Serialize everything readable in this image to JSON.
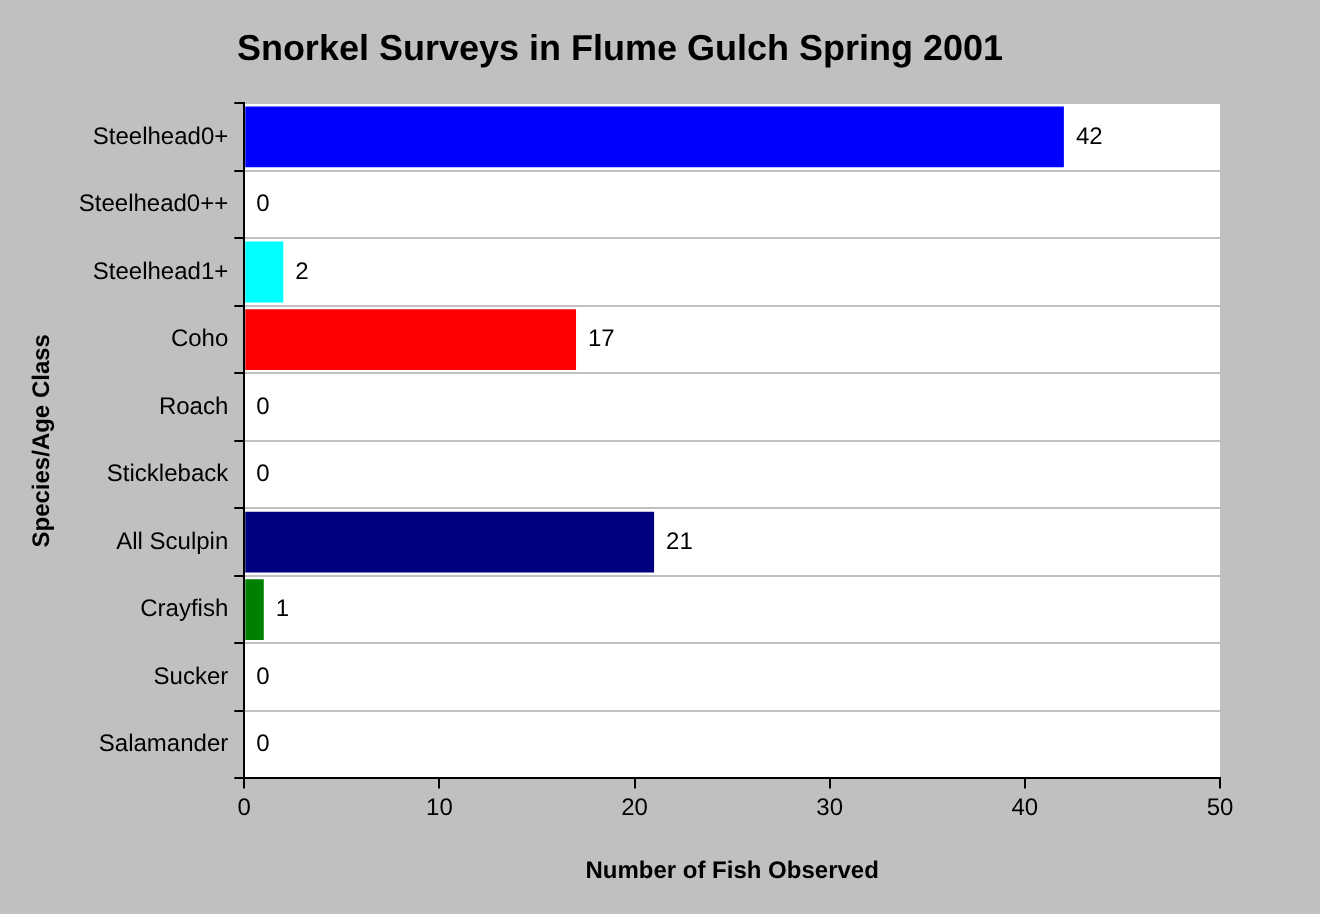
{
  "chart_data": {
    "type": "bar",
    "orientation": "horizontal",
    "title": "Snorkel Surveys in Flume Gulch Spring 2001",
    "xlabel": "Number of Fish Observed",
    "ylabel": "Species/Age Class",
    "categories": [
      "Steelhead0+",
      "Steelhead0++",
      "Steelhead1+",
      "Coho",
      "Roach",
      "Stickleback",
      "All Sculpin",
      "Crayfish",
      "Sucker",
      "Salamander"
    ],
    "values": [
      42,
      0,
      2,
      17,
      0,
      0,
      21,
      1,
      0,
      0
    ],
    "colors": [
      "#0000ff",
      "#0000ff",
      "#00ffff",
      "#ff0000",
      "#808080",
      "#808080",
      "#000080",
      "#008000",
      "#808080",
      "#808080"
    ],
    "xlim": [
      0,
      50
    ],
    "xticks": [
      0,
      10,
      20,
      30,
      40,
      50
    ],
    "grid": "y",
    "data_labels": true
  }
}
